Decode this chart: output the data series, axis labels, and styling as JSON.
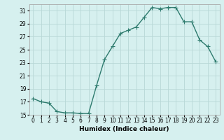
{
  "x": [
    0,
    1,
    2,
    3,
    4,
    5,
    6,
    7,
    8,
    9,
    10,
    11,
    12,
    13,
    14,
    15,
    16,
    17,
    18,
    19,
    20,
    21,
    22,
    23
  ],
  "y": [
    17.5,
    17.0,
    16.8,
    15.5,
    15.3,
    15.3,
    15.2,
    15.2,
    19.5,
    23.5,
    25.5,
    27.5,
    28.0,
    28.5,
    30.0,
    31.5,
    31.3,
    31.5,
    31.5,
    29.3,
    29.3,
    26.5,
    25.5,
    23.2
  ],
  "line_color": "#2e7b6e",
  "marker": "+",
  "markersize": 4,
  "linewidth": 1.0,
  "bg_color": "#d6f0ef",
  "grid_color": "#b8d8d6",
  "xlabel": "Humidex (Indice chaleur)",
  "xlim": [
    -0.5,
    23.5
  ],
  "ylim": [
    15,
    32
  ],
  "yticks": [
    15,
    17,
    19,
    21,
    23,
    25,
    27,
    29,
    31
  ],
  "xticks": [
    0,
    1,
    2,
    3,
    4,
    5,
    6,
    7,
    8,
    9,
    10,
    11,
    12,
    13,
    14,
    15,
    16,
    17,
    18,
    19,
    20,
    21,
    22,
    23
  ],
  "label_fontsize": 6.5,
  "tick_fontsize": 5.5
}
